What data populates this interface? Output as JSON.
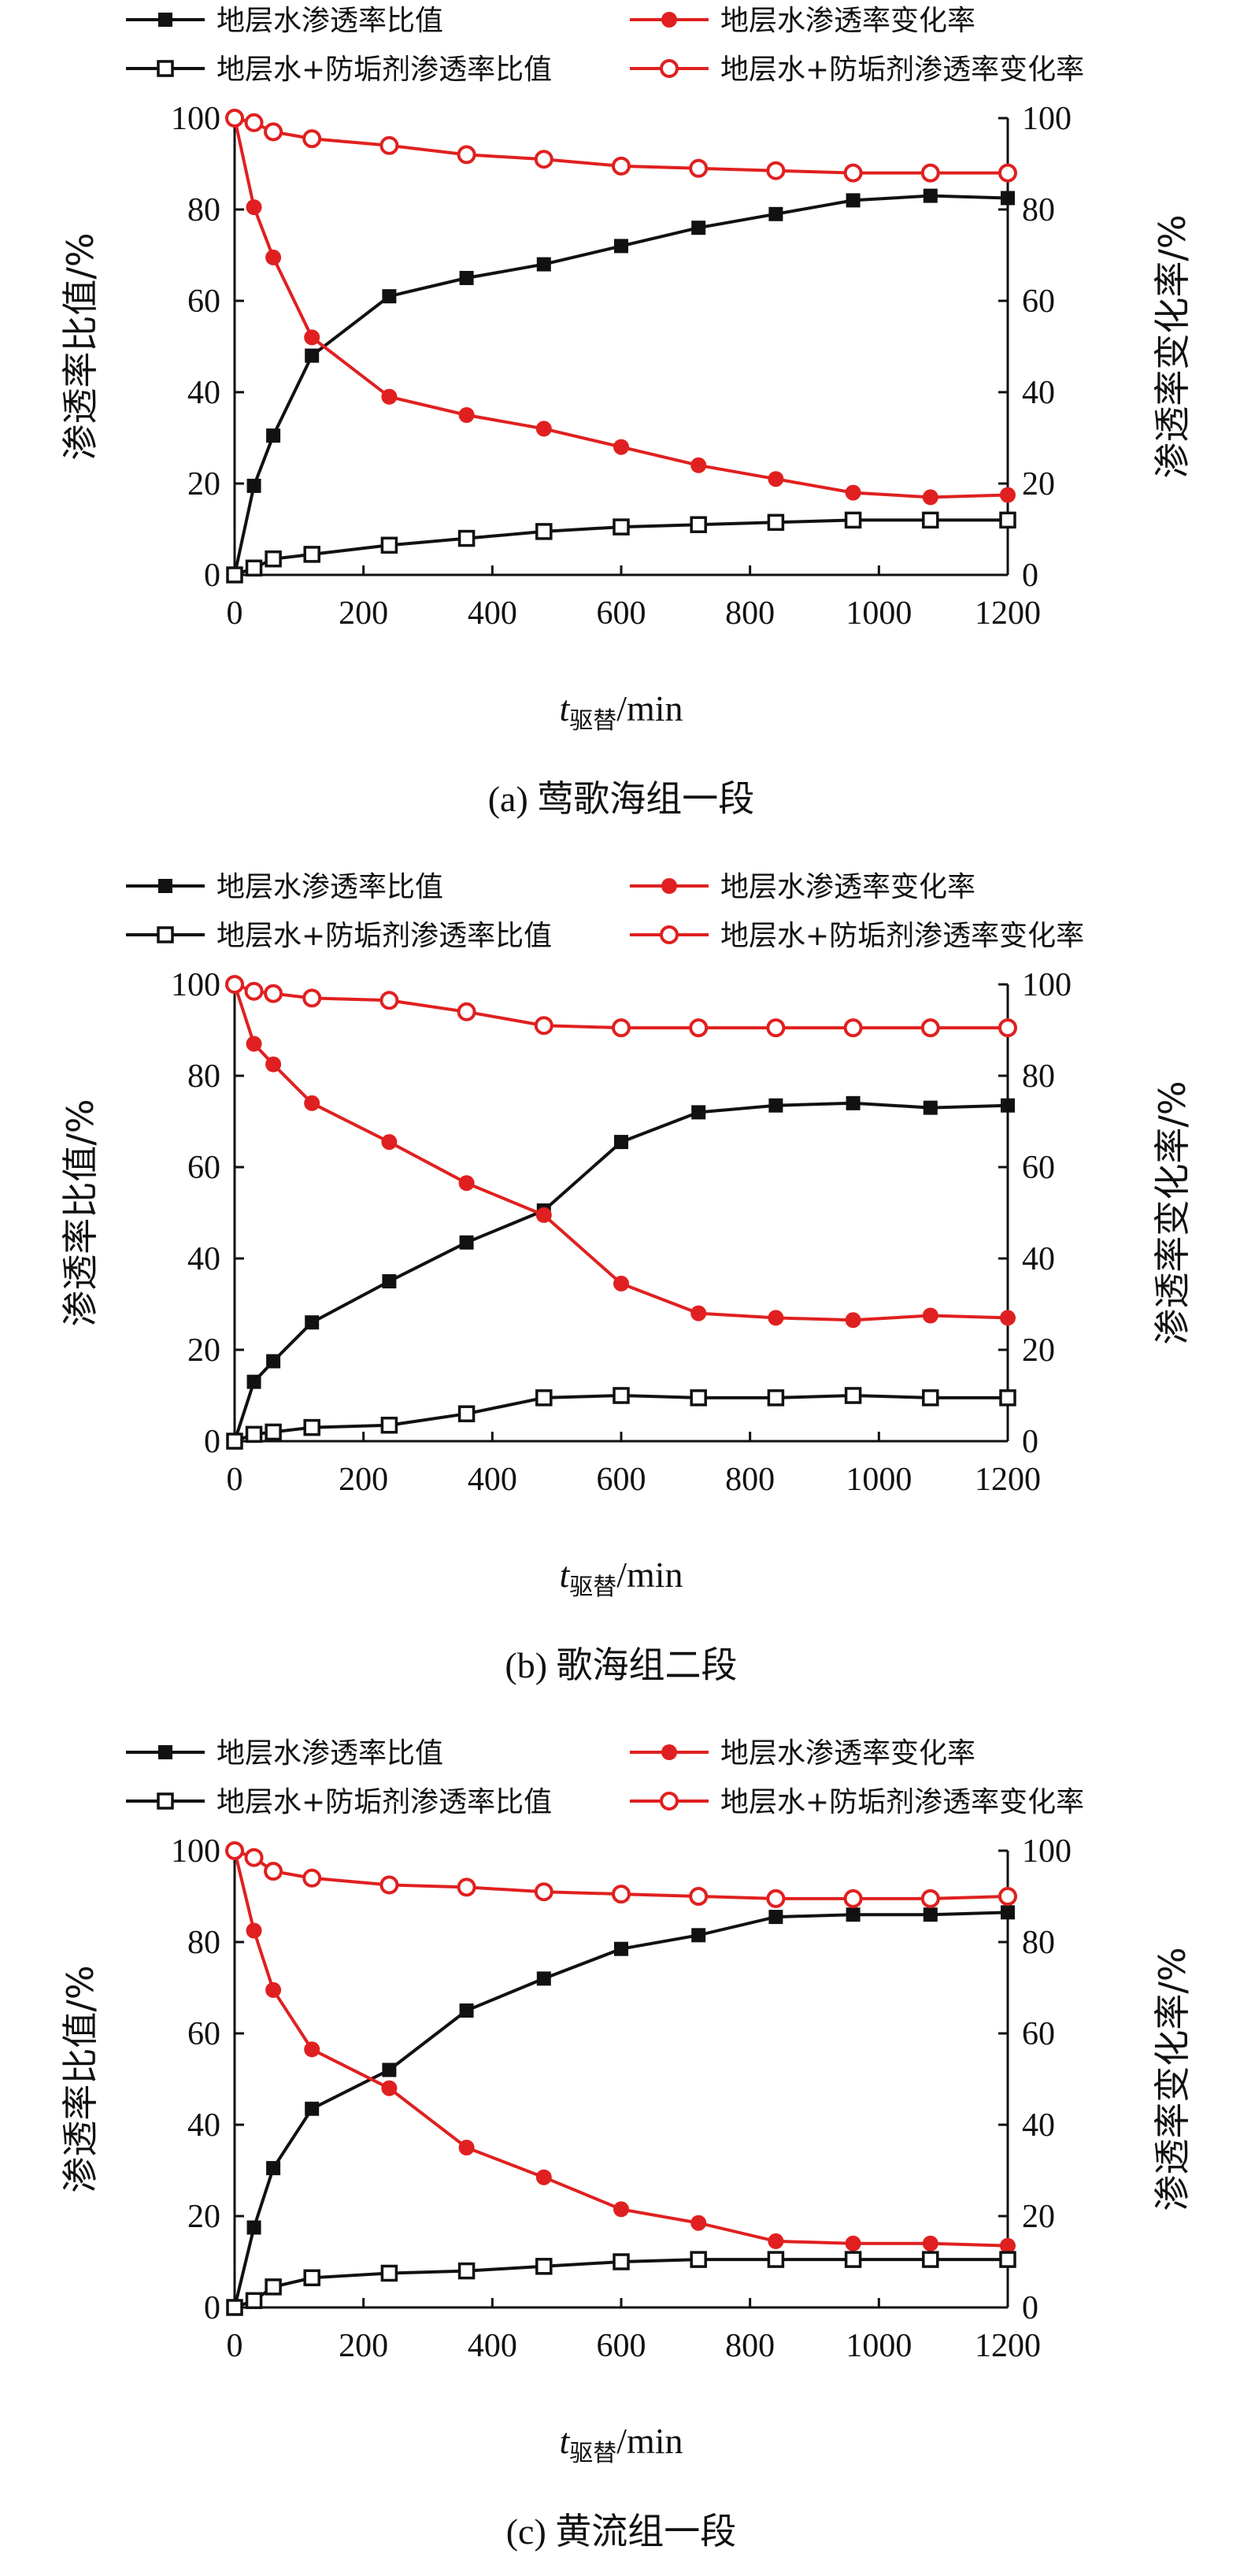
{
  "chart_data": [
    {
      "type": "line",
      "caption": "(a) 莺歌海组一段",
      "xlabel_main": "t",
      "xlabel_sub": "驱替",
      "xlabel_unit": "/min",
      "ylabel_left": "渗透率比值/%",
      "ylabel_right": "渗透率变化率/%",
      "xlim": [
        0,
        1200
      ],
      "ylim": [
        0,
        100
      ],
      "xticks": [
        "0",
        "200",
        "400",
        "600",
        "800",
        "1000",
        "1200"
      ],
      "yticks": [
        "0",
        "20",
        "40",
        "60",
        "80",
        "100"
      ],
      "legend_placement": "top",
      "series": [
        {
          "name": "地层水渗透率比值",
          "color": "#111111",
          "marker": "filled-square",
          "x": [
            0,
            30,
            60,
            120,
            240,
            360,
            480,
            600,
            720,
            840,
            960,
            1080,
            1200
          ],
          "values": [
            0,
            19.5,
            30.5,
            48,
            61,
            65,
            68,
            72,
            76,
            79,
            82,
            83,
            82.5
          ]
        },
        {
          "name": "地层水渗透率变化率",
          "color": "#e02020",
          "marker": "filled-circle",
          "x": [
            0,
            30,
            60,
            120,
            240,
            360,
            480,
            600,
            720,
            840,
            960,
            1080,
            1200
          ],
          "values": [
            100,
            80.5,
            69.5,
            52,
            39,
            35,
            32,
            28,
            24,
            21,
            18,
            17,
            17.5
          ]
        },
        {
          "name": "地层水+防垢剂渗透率比值",
          "color": "#111111",
          "marker": "open-square",
          "x": [
            0,
            30,
            60,
            120,
            240,
            360,
            480,
            600,
            720,
            840,
            960,
            1080,
            1200
          ],
          "values": [
            0,
            1.5,
            3.5,
            4.5,
            6.5,
            8,
            9.5,
            10.5,
            11,
            11.5,
            12,
            12,
            12
          ]
        },
        {
          "name": "地层水+防垢剂渗透率变化率",
          "color": "#e02020",
          "marker": "open-circle",
          "x": [
            0,
            30,
            60,
            120,
            240,
            360,
            480,
            600,
            720,
            840,
            960,
            1080,
            1200
          ],
          "values": [
            100,
            99,
            97,
            95.5,
            94,
            92,
            91,
            89.5,
            89,
            88.5,
            88,
            88,
            88
          ]
        }
      ]
    },
    {
      "type": "line",
      "caption": "(b) 歌海组二段",
      "xlabel_main": "t",
      "xlabel_sub": "驱替",
      "xlabel_unit": "/min",
      "ylabel_left": "渗透率比值/%",
      "ylabel_right": "渗透率变化率/%",
      "xlim": [
        0,
        1200
      ],
      "ylim": [
        0,
        100
      ],
      "xticks": [
        "0",
        "200",
        "400",
        "600",
        "800",
        "1000",
        "1200"
      ],
      "yticks": [
        "0",
        "20",
        "40",
        "60",
        "80",
        "100"
      ],
      "legend_placement": "top",
      "series": [
        {
          "name": "地层水渗透率比值",
          "color": "#111111",
          "marker": "filled-square",
          "x": [
            0,
            30,
            60,
            120,
            240,
            360,
            480,
            600,
            720,
            840,
            960,
            1080,
            1200
          ],
          "values": [
            0,
            13,
            17.5,
            26,
            35,
            43.5,
            50.5,
            65.5,
            72,
            73.5,
            74,
            73,
            73.5
          ]
        },
        {
          "name": "地层水渗透率变化率",
          "color": "#e02020",
          "marker": "filled-circle",
          "x": [
            0,
            30,
            60,
            120,
            240,
            360,
            480,
            600,
            720,
            840,
            960,
            1080,
            1200
          ],
          "values": [
            100,
            87,
            82.5,
            74,
            65.5,
            56.5,
            49.5,
            34.5,
            28,
            27,
            26.5,
            27.5,
            27
          ]
        },
        {
          "name": "地层水+防垢剂渗透率比值",
          "color": "#111111",
          "marker": "open-square",
          "x": [
            0,
            30,
            60,
            120,
            240,
            360,
            480,
            600,
            720,
            840,
            960,
            1080,
            1200
          ],
          "values": [
            0,
            1.5,
            2,
            3,
            3.5,
            6,
            9.5,
            10,
            9.5,
            9.5,
            10,
            9.5,
            9.5
          ]
        },
        {
          "name": "地层水+防垢剂渗透率变化率",
          "color": "#e02020",
          "marker": "open-circle",
          "x": [
            0,
            30,
            60,
            120,
            240,
            360,
            480,
            600,
            720,
            840,
            960,
            1080,
            1200
          ],
          "values": [
            100,
            98.5,
            98,
            97,
            96.5,
            94,
            91,
            90.5,
            90.5,
            90.5,
            90.5,
            90.5,
            90.5
          ]
        }
      ]
    },
    {
      "type": "line",
      "caption": "(c) 黄流组一段",
      "xlabel_main": "t",
      "xlabel_sub": "驱替",
      "xlabel_unit": "/min",
      "ylabel_left": "渗透率比值/%",
      "ylabel_right": "渗透率变化率/%",
      "xlim": [
        0,
        1200
      ],
      "ylim": [
        0,
        100
      ],
      "xticks": [
        "0",
        "200",
        "400",
        "600",
        "800",
        "1000",
        "1200"
      ],
      "yticks": [
        "0",
        "20",
        "40",
        "60",
        "80",
        "100"
      ],
      "legend_placement": "top",
      "series": [
        {
          "name": "地层水渗透率比值",
          "color": "#111111",
          "marker": "filled-square",
          "x": [
            0,
            30,
            60,
            120,
            240,
            360,
            480,
            600,
            720,
            840,
            960,
            1080,
            1200
          ],
          "values": [
            0,
            17.5,
            30.5,
            43.5,
            52,
            65,
            72,
            78.5,
            81.5,
            85.5,
            86,
            86,
            86.5
          ]
        },
        {
          "name": "地层水渗透率变化率",
          "color": "#e02020",
          "marker": "filled-circle",
          "x": [
            0,
            30,
            60,
            120,
            240,
            360,
            480,
            600,
            720,
            840,
            960,
            1080,
            1200
          ],
          "values": [
            100,
            82.5,
            69.5,
            56.5,
            48,
            35,
            28.5,
            21.5,
            18.5,
            14.5,
            14,
            14,
            13.5
          ]
        },
        {
          "name": "地层水+防垢剂渗透率比值",
          "color": "#111111",
          "marker": "open-square",
          "x": [
            0,
            30,
            60,
            120,
            240,
            360,
            480,
            600,
            720,
            840,
            960,
            1080,
            1200
          ],
          "values": [
            0,
            1.5,
            4.5,
            6.5,
            7.5,
            8,
            9,
            10,
            10.5,
            10.5,
            10.5,
            10.5,
            10.5
          ]
        },
        {
          "name": "地层水+防垢剂渗透率变化率",
          "color": "#e02020",
          "marker": "open-circle",
          "x": [
            0,
            30,
            60,
            120,
            240,
            360,
            480,
            600,
            720,
            840,
            960,
            1080,
            1200
          ],
          "values": [
            100,
            98.5,
            95.5,
            94,
            92.5,
            92,
            91,
            90.5,
            90,
            89.5,
            89.5,
            89.5,
            90
          ]
        }
      ]
    }
  ]
}
